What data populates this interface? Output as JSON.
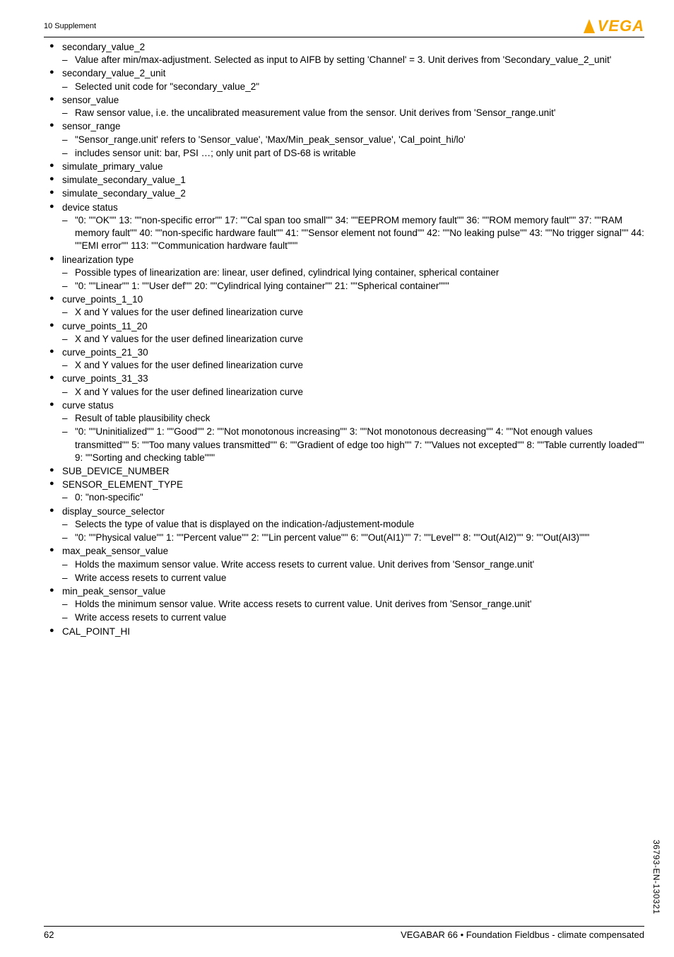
{
  "header": {
    "section": "10 Supplement"
  },
  "logo": {
    "text": "VEGA"
  },
  "footer": {
    "page": "62",
    "product": "VEGABAR 66 • Foundation Fieldbus - climate compensated"
  },
  "docId": "36793-EN-130321",
  "items": [
    {
      "t": "secondary_value_2",
      "sub": [
        "Value after min/max-adjustment. Selected as input to AIFB by setting 'Channel' = 3. Unit derives from 'Secondary_value_2_unit'"
      ]
    },
    {
      "t": "secondary_value_2_unit",
      "sub": [
        "Selected unit code for \"secondary_value_2\""
      ]
    },
    {
      "t": "sensor_value",
      "sub": [
        "Raw sensor value, i.e. the uncalibrated measurement value from the sensor. Unit derives from 'Sensor_range.unit'"
      ]
    },
    {
      "t": "sensor_range",
      "sub": [
        "\"Sensor_range.unit' refers to 'Sensor_value', 'Max/Min_peak_sensor_value', 'Cal_point_hi/lo'",
        "includes sensor unit: bar, PSI …; only unit part of DS-68 is writable"
      ]
    },
    {
      "t": "simulate_primary_value",
      "sub": []
    },
    {
      "t": "simulate_secondary_value_1",
      "sub": []
    },
    {
      "t": "simulate_secondary_value_2",
      "sub": []
    },
    {
      "t": "device status",
      "sub": [
        "\"0: \"\"OK\"\" 13: \"\"non-specific error\"\" 17: \"\"Cal span too small\"\" 34: \"\"EEPROM memory fault\"\" 36: \"\"ROM memory fault\"\" 37: \"\"RAM memory fault\"\" 40: \"\"non-specific hardware fault\"\" 41: \"\"Sensor element not found\"\" 42: \"\"No leaking pulse\"\" 43: \"\"No trigger signal\"\" 44: \"\"EMI error\"\" 113: \"\"Communication hardware fault\"\"\""
      ]
    },
    {
      "t": "linearization type",
      "sub": [
        "Possible types of linearization are: linear, user defined, cylindrical lying container, spherical container",
        "\"0: \"\"Linear\"\" 1: \"\"User def\"\" 20: \"\"Cylindrical lying container\"\" 21: \"\"Spherical container\"\"\""
      ]
    },
    {
      "t": "curve_points_1_10",
      "sub": [
        "X and Y values for the user defined linearization curve"
      ]
    },
    {
      "t": "curve_points_11_20",
      "sub": [
        "X and Y values for the user defined linearization curve"
      ]
    },
    {
      "t": "curve_points_21_30",
      "sub": [
        "X and Y values for the user defined linearization curve"
      ]
    },
    {
      "t": "curve_points_31_33",
      "sub": [
        "X and Y values for the user defined linearization curve"
      ]
    },
    {
      "t": "curve status",
      "sub": [
        "Result of table plausibility check",
        "\"0: \"\"Uninitialized\"\" 1: \"\"Good\"\" 2: \"\"Not monotonous increasing\"\" 3: \"\"Not monotonous decreasing\"\" 4: \"\"Not enough values transmitted\"\" 5: \"\"Too many values transmitted\"\" 6: \"\"Gradient of edge too high\"\" 7: \"\"Values not excepted\"\" 8: \"\"Table currently loaded\"\" 9: \"\"Sorting and checking table\"\"\""
      ]
    },
    {
      "t": "SUB_DEVICE_NUMBER",
      "sub": []
    },
    {
      "t": "SENSOR_ELEMENT_TYPE",
      "sub": [
        "0: \"non-specific\""
      ]
    },
    {
      "t": "display_source_selector",
      "sub": [
        "Selects the type of value that is displayed on the indication-/adjustement-module",
        "\"0: \"\"Physical value\"\" 1: \"\"Percent value\"\" 2: \"\"Lin percent value\"\" 6: \"\"Out(AI1)\"\" 7: \"\"Level\"\" 8: \"\"Out(AI2)\"\" 9: \"\"Out(AI3)\"\"\""
      ]
    },
    {
      "t": "max_peak_sensor_value",
      "sub": [
        "Holds the maximum sensor value. Write access resets to current value. Unit derives from 'Sensor_range.unit'",
        "Write access resets to current value"
      ]
    },
    {
      "t": "min_peak_sensor_value",
      "sub": [
        "Holds the minimum sensor value. Write access resets to current value. Unit derives from 'Sensor_range.unit'",
        "Write access resets to current value"
      ]
    },
    {
      "t": "CAL_POINT_HI",
      "sub": []
    }
  ]
}
